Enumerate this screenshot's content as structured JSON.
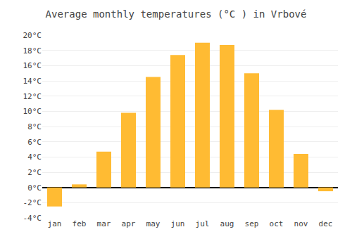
{
  "chart_data": {
    "type": "bar",
    "title": "Average monthly temperatures (°C ) in Vrbové",
    "categories": [
      "jan",
      "feb",
      "mar",
      "apr",
      "may",
      "jun",
      "jul",
      "aug",
      "sep",
      "oct",
      "nov",
      "dec"
    ],
    "values": [
      -2.5,
      0.4,
      4.7,
      9.8,
      14.5,
      17.4,
      19.0,
      18.7,
      15.0,
      10.2,
      4.4,
      -0.5
    ],
    "color": "#FFBB33",
    "ylim": [
      -4,
      20
    ],
    "yticks": [
      {
        "value": -4,
        "label": "-4°C"
      },
      {
        "value": -2,
        "label": "-2°C"
      },
      {
        "value": 0,
        "label": "0°C"
      },
      {
        "value": 2,
        "label": "2°C"
      },
      {
        "value": 4,
        "label": "4°C"
      },
      {
        "value": 6,
        "label": "6°C"
      },
      {
        "value": 8,
        "label": "8°C"
      },
      {
        "value": 10,
        "label": "10°C"
      },
      {
        "value": 12,
        "label": "12°C"
      },
      {
        "value": 14,
        "label": "14°C"
      },
      {
        "value": 16,
        "label": "16°C"
      },
      {
        "value": 18,
        "label": "18°C"
      },
      {
        "value": 20,
        "label": "20°C"
      }
    ],
    "grid": true
  }
}
